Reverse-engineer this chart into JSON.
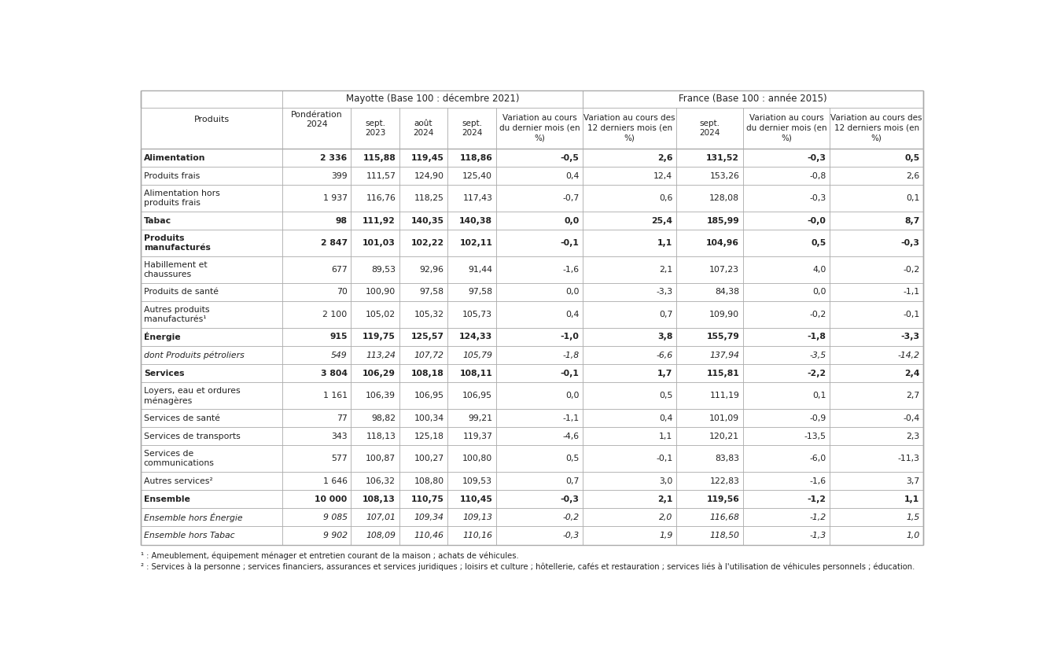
{
  "rows": [
    {
      "label": "Alimentation",
      "bold": true,
      "italic": false,
      "values": [
        "2 336",
        "115,88",
        "119,45",
        "118,86",
        "-0,5",
        "2,6",
        "131,52",
        "-0,3",
        "0,5"
      ]
    },
    {
      "label": "Produits frais",
      "bold": false,
      "italic": false,
      "values": [
        "399",
        "111,57",
        "124,90",
        "125,40",
        "0,4",
        "12,4",
        "153,26",
        "-0,8",
        "2,6"
      ]
    },
    {
      "label": "Alimentation hors\nproduits frais",
      "bold": false,
      "italic": false,
      "values": [
        "1 937",
        "116,76",
        "118,25",
        "117,43",
        "-0,7",
        "0,6",
        "128,08",
        "-0,3",
        "0,1"
      ]
    },
    {
      "label": "Tabac",
      "bold": true,
      "italic": false,
      "values": [
        "98",
        "111,92",
        "140,35",
        "140,38",
        "0,0",
        "25,4",
        "185,99",
        "-0,0",
        "8,7"
      ]
    },
    {
      "label": "Produits\nmanufacturés",
      "bold": true,
      "italic": false,
      "values": [
        "2 847",
        "101,03",
        "102,22",
        "102,11",
        "-0,1",
        "1,1",
        "104,96",
        "0,5",
        "-0,3"
      ]
    },
    {
      "label": "Habillement et\nchaussures",
      "bold": false,
      "italic": false,
      "values": [
        "677",
        "89,53",
        "92,96",
        "91,44",
        "-1,6",
        "2,1",
        "107,23",
        "4,0",
        "-0,2"
      ]
    },
    {
      "label": "Produits de santé",
      "bold": false,
      "italic": false,
      "values": [
        "70",
        "100,90",
        "97,58",
        "97,58",
        "0,0",
        "-3,3",
        "84,38",
        "0,0",
        "-1,1"
      ]
    },
    {
      "label": "Autres produits\nmanufacturés¹",
      "bold": false,
      "italic": false,
      "values": [
        "2 100",
        "105,02",
        "105,32",
        "105,73",
        "0,4",
        "0,7",
        "109,90",
        "-0,2",
        "-0,1"
      ]
    },
    {
      "label": "Énergie",
      "bold": true,
      "italic": false,
      "values": [
        "915",
        "119,75",
        "125,57",
        "124,33",
        "-1,0",
        "3,8",
        "155,79",
        "-1,8",
        "-3,3"
      ]
    },
    {
      "label": "dont Produits pétroliers",
      "bold": false,
      "italic": true,
      "values": [
        "549",
        "113,24",
        "107,72",
        "105,79",
        "-1,8",
        "-6,6",
        "137,94",
        "-3,5",
        "-14,2"
      ]
    },
    {
      "label": "Services",
      "bold": true,
      "italic": false,
      "values": [
        "3 804",
        "106,29",
        "108,18",
        "108,11",
        "-0,1",
        "1,7",
        "115,81",
        "-2,2",
        "2,4"
      ]
    },
    {
      "label": "Loyers, eau et ordures\nménagères",
      "bold": false,
      "italic": false,
      "values": [
        "1 161",
        "106,39",
        "106,95",
        "106,95",
        "0,0",
        "0,5",
        "111,19",
        "0,1",
        "2,7"
      ]
    },
    {
      "label": "Services de santé",
      "bold": false,
      "italic": false,
      "values": [
        "77",
        "98,82",
        "100,34",
        "99,21",
        "-1,1",
        "0,4",
        "101,09",
        "-0,9",
        "-0,4"
      ]
    },
    {
      "label": "Services de transports",
      "bold": false,
      "italic": false,
      "values": [
        "343",
        "118,13",
        "125,18",
        "119,37",
        "-4,6",
        "1,1",
        "120,21",
        "-13,5",
        "2,3"
      ]
    },
    {
      "label": "Services de\ncommunications",
      "bold": false,
      "italic": false,
      "values": [
        "577",
        "100,87",
        "100,27",
        "100,80",
        "0,5",
        "-0,1",
        "83,83",
        "-6,0",
        "-11,3"
      ]
    },
    {
      "label": "Autres services²",
      "bold": false,
      "italic": false,
      "values": [
        "1 646",
        "106,32",
        "108,80",
        "109,53",
        "0,7",
        "3,0",
        "122,83",
        "-1,6",
        "3,7"
      ]
    },
    {
      "label": "Ensemble",
      "bold": true,
      "italic": false,
      "values": [
        "10 000",
        "108,13",
        "110,75",
        "110,45",
        "-0,3",
        "2,1",
        "119,56",
        "-1,2",
        "1,1"
      ]
    },
    {
      "label": "Ensemble hors Énergie",
      "bold": false,
      "italic": true,
      "values": [
        "9 085",
        "107,01",
        "109,34",
        "109,13",
        "-0,2",
        "2,0",
        "116,68",
        "-1,2",
        "1,5"
      ]
    },
    {
      "label": "Ensemble hors Tabac",
      "bold": false,
      "italic": true,
      "values": [
        "9 902",
        "108,09",
        "110,46",
        "110,16",
        "-0,3",
        "1,9",
        "118,50",
        "-1,3",
        "1,0"
      ]
    }
  ],
  "col_headers": [
    "Produits",
    "Pondération\n2024",
    "sept.\n2023",
    "août\n2024",
    "sept.\n2024",
    "Variation au cours\ndu dernier mois (en\n%)",
    "Variation au cours des\n12 derniers mois (en\n%)",
    "sept.\n2024",
    "Variation au cours\ndu dernier mois (en\n%)",
    "Variation au cours des\n12 derniers mois (en\n%)"
  ],
  "mayotte_label": "Mayotte (Base 100 : décembre 2021)",
  "france_label": "France (Base 100 : année 2015)",
  "footnote1": "¹ : Ameublement, équipement ménager et entretien courant de la maison ; achats de véhicules.",
  "footnote2": "² : Services à la personne ; services financiers, assurances et services juridiques ; loisirs et culture ; hôtellerie, cafés et restauration ; services liés à l'utilisation de véhicules personnels ; éducation.",
  "bg_color": "#ffffff",
  "line_color": "#aaaaaa",
  "text_color": "#222222"
}
